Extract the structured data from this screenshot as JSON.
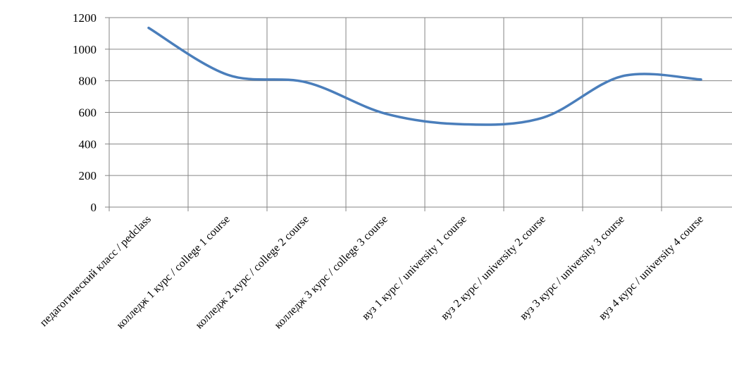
{
  "chart_data": {
    "type": "line",
    "smooth": true,
    "categories": [
      "педагогический класс / pedclass",
      "колледж 1 курс / college 1 course",
      "колледж 2 курс / college 2 course",
      "колледж 3 курс / college 3 course",
      "вуз 1 курс / university 1 course",
      "вуз 2 курс / university 2 course",
      "вуз 3 курс / university 3 course",
      "вуз 4 курс / university 4 course"
    ],
    "series": [
      {
        "values": [
          1135,
          838,
          790,
          592,
          524,
          567,
          829,
          808
        ]
      }
    ],
    "ylim": [
      0,
      1200
    ],
    "yticks": [
      0,
      200,
      400,
      600,
      800,
      1000,
      1200
    ],
    "grid": true,
    "line_color": "#4a7ebb",
    "grid_color": "#868686",
    "title": "",
    "xlabel": "",
    "ylabel": ""
  }
}
